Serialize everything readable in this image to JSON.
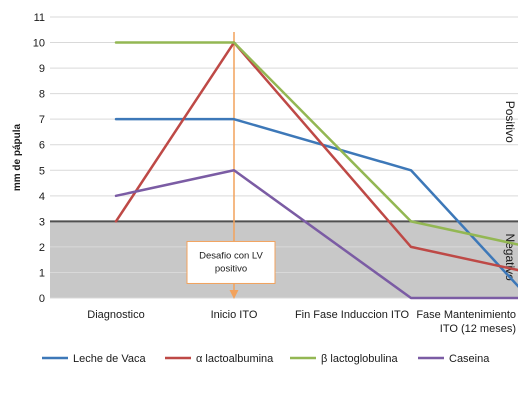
{
  "chart_data": {
    "type": "line",
    "ylabel": "mm de pápula",
    "ylim": [
      0,
      11
    ],
    "categories": [
      [
        "Diagnostico"
      ],
      [
        "Inicio ITO"
      ],
      [
        "Fin Fase  Induccion ITO"
      ],
      [
        "Fase Mantenimiento",
        "ITO (12 meses)"
      ]
    ],
    "x_positions": [
      0,
      1,
      2,
      3
    ],
    "series": [
      {
        "name": "Leche de Vaca",
        "color": "#3d78b8",
        "points": [
          [
            0,
            7
          ],
          [
            1,
            7
          ],
          [
            2.5,
            5
          ],
          [
            3.5,
            0
          ]
        ]
      },
      {
        "name": "α lactoalbumina",
        "color": "#be4946",
        "points": [
          [
            0,
            3
          ],
          [
            1,
            10
          ],
          [
            2.5,
            2
          ],
          [
            3.5,
            1
          ]
        ]
      },
      {
        "name": "β lactoglobulina",
        "color": "#93b753",
        "points": [
          [
            0,
            10
          ],
          [
            1,
            10
          ],
          [
            2.5,
            3
          ],
          [
            3.5,
            2
          ]
        ]
      },
      {
        "name": "Caseina",
        "color": "#7b5ca4",
        "points": [
          [
            0,
            4
          ],
          [
            1,
            5
          ],
          [
            2.5,
            0
          ],
          [
            3.5,
            0
          ]
        ]
      }
    ],
    "threshold": {
      "value": 3,
      "color": "#505050"
    },
    "negative_region_color": "#c8c8c8",
    "region_labels": {
      "positive": "Positivo",
      "negative": "Negativo"
    },
    "annotation": {
      "lines": [
        "Desafio con LV",
        "positivo"
      ],
      "at_x": 1,
      "arrow_color": "#f2a25c",
      "box_border_color": "#f2a25c"
    },
    "grid": true,
    "legend_position": "bottom"
  }
}
